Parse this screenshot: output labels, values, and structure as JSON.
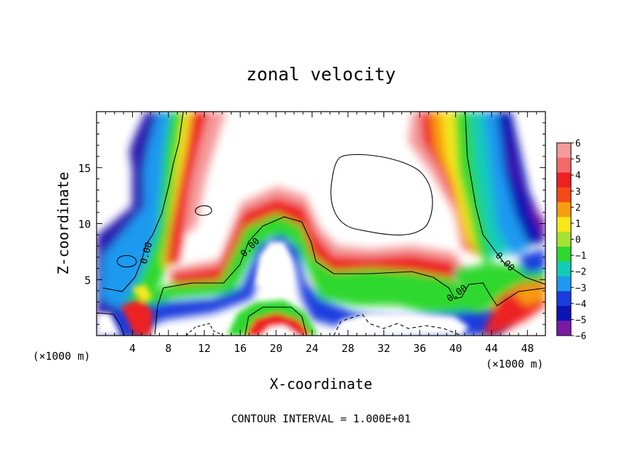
{
  "chart_data": {
    "type": "heatmap",
    "title": "zonal velocity",
    "xlabel": "X-coordinate",
    "ylabel": "Z-coordinate",
    "x_units": "(×1000 m)",
    "x_units_right": "(×1000 m)",
    "xlim": [
      0,
      50
    ],
    "ylim": [
      0,
      20
    ],
    "x_ticks": [
      4,
      8,
      12,
      16,
      20,
      24,
      28,
      32,
      36,
      40,
      44,
      48
    ],
    "y_ticks": [
      5,
      10,
      15
    ],
    "footer": "CONTOUR INTERVAL = 1.000E+01",
    "contour_labels": [
      "0.00",
      "0.00",
      "0.00",
      "0.00"
    ],
    "colorbar": {
      "ticks": [
        "6",
        "5",
        "4",
        "3",
        "2",
        "1",
        "0",
        "−1",
        "−2",
        "−3",
        "−4",
        "−5",
        "−6"
      ],
      "colors": [
        "#f49a9a",
        "#f26a6a",
        "#ee2020",
        "#f44b18",
        "#f89d10",
        "#f7e81a",
        "#a6e234",
        "#2ed82e",
        "#14ccb6",
        "#1f9af0",
        "#1a3cde",
        "#0c14b4",
        "#7a1aa4"
      ]
    }
  }
}
